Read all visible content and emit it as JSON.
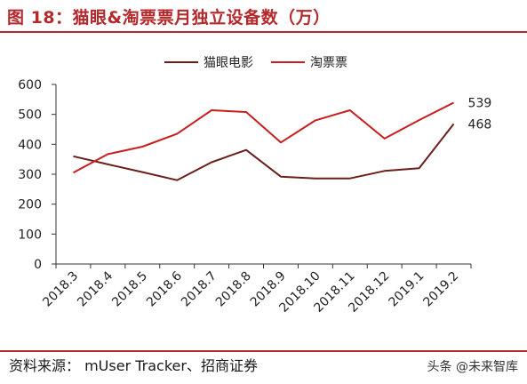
{
  "header": {
    "title": "图 18：猫眼&淘票票月独立设备数（万）"
  },
  "footer": {
    "source": "资料来源： mUser Tracker、招商证券",
    "watermark": "头条 @未来智库"
  },
  "chart_data": {
    "type": "line",
    "title": "",
    "xlabel": "",
    "ylabel": "",
    "categories": [
      "2018.3",
      "2018.4",
      "2018.5",
      "2018.6",
      "2018.7",
      "2018.8",
      "2018.9",
      "2018.10",
      "2018.11",
      "2018.12",
      "2019.1",
      "2019.2"
    ],
    "ylim": [
      0,
      600
    ],
    "yticks": [
      0,
      100,
      200,
      300,
      400,
      500,
      600
    ],
    "grid": false,
    "legend_position": "top",
    "series": [
      {
        "name": "猫眼电影",
        "color": "#6b1f1a",
        "values": [
          360,
          333,
          307,
          280,
          340,
          381,
          292,
          286,
          286,
          311,
          320,
          468
        ]
      },
      {
        "name": "淘票票",
        "color": "#c81e1e",
        "values": [
          305,
          367,
          392,
          435,
          514,
          508,
          406,
          480,
          514,
          419,
          481,
          539
        ]
      }
    ],
    "end_labels": [
      "468",
      "539"
    ]
  }
}
